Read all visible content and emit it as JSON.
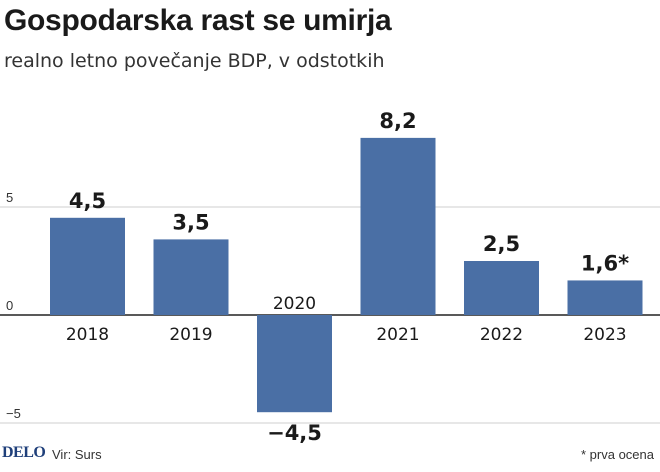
{
  "header": {
    "title": "Gospodarska rast se umirja",
    "subtitle": "realno letno povečanje BDP, v odstotkih"
  },
  "footer": {
    "brand": "DELO",
    "source": "Vir: Surs",
    "note": "* prva ocena"
  },
  "colors": {
    "bar": "#4a6fa5",
    "grid": "#cfcfcf",
    "zero_line": "#222222"
  },
  "chart_data": {
    "type": "bar",
    "categories": [
      "2018",
      "2019",
      "2020",
      "2021",
      "2022",
      "2023"
    ],
    "values": [
      4.5,
      3.5,
      -4.5,
      8.2,
      2.5,
      1.6
    ],
    "value_labels": [
      "4,5",
      "3,5",
      "−4,5",
      "8,2",
      "2,5",
      "1,6*"
    ],
    "yticks": [
      5,
      0,
      -5
    ],
    "ytick_labels": [
      "5",
      "0",
      "−5"
    ],
    "ylim": [
      -5,
      10
    ],
    "grid": true,
    "title": "Gospodarska rast se umirja",
    "subtitle": "realno letno povečanje BDP, v odstotkih"
  }
}
